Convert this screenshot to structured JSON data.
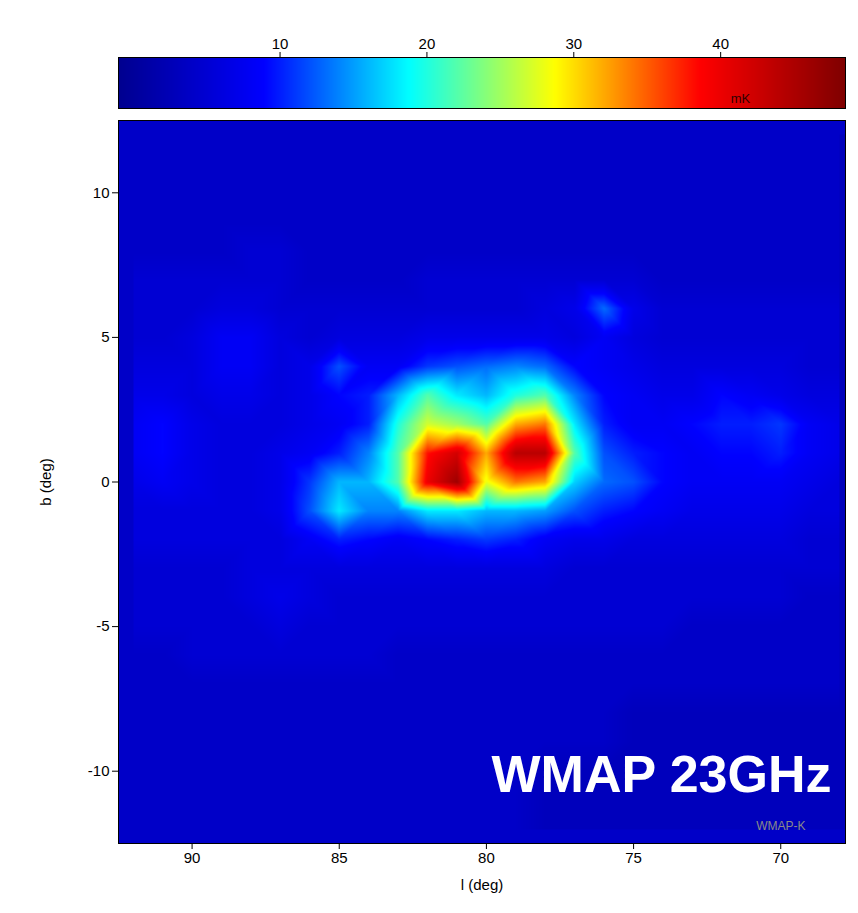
{
  "chart_data": {
    "type": "heatmap",
    "x_label": "l (deg)",
    "y_label": "b (deg)",
    "annotations": [
      "WMAP 23GHz",
      "WMAP-K"
    ],
    "xlim": [
      92.5,
      67.8
    ],
    "ylim": [
      -12.5,
      12.5
    ],
    "xticks": [
      90,
      85,
      80,
      75,
      70
    ],
    "yticks": [
      10,
      5,
      0,
      -5,
      -10
    ],
    "x": [
      92,
      91,
      90,
      89,
      88,
      87,
      86,
      85,
      84,
      83,
      82,
      81,
      80,
      79,
      78,
      77,
      76,
      75,
      74,
      73,
      72,
      71,
      70,
      69,
      68
    ],
    "y": [
      12,
      11,
      10,
      9,
      8,
      7,
      6,
      5,
      4,
      3,
      2,
      1,
      0,
      -1,
      -2,
      -3,
      -4,
      -5,
      -6,
      -7,
      -8,
      -9,
      -10,
      -11,
      -12
    ],
    "values": [
      [
        4,
        4,
        4,
        4,
        4,
        4,
        4,
        4,
        4,
        4,
        4,
        4,
        4,
        4,
        4,
        4,
        4,
        4,
        4,
        4,
        4,
        4,
        4,
        4,
        4
      ],
      [
        4,
        4,
        4,
        4,
        4,
        4,
        4,
        4,
        4,
        4,
        4,
        4,
        4,
        4,
        4,
        4,
        4,
        4,
        4,
        4,
        4,
        4,
        4,
        4,
        4
      ],
      [
        4,
        4,
        4,
        4,
        4,
        4,
        4,
        4,
        4,
        4,
        4,
        4,
        4,
        4,
        4,
        4,
        4,
        4,
        4,
        4,
        4,
        4,
        4,
        4,
        4
      ],
      [
        4,
        4,
        4,
        4,
        4,
        4,
        4,
        4,
        4,
        4,
        4,
        4,
        4,
        4,
        4,
        4,
        4,
        4,
        4,
        4,
        4,
        4,
        4,
        4,
        4
      ],
      [
        4,
        4,
        4,
        4,
        5,
        5,
        4,
        4,
        4,
        4,
        4,
        4,
        4,
        4,
        4,
        4,
        4,
        4,
        4,
        4,
        4,
        4,
        4,
        4,
        4
      ],
      [
        5,
        5,
        5,
        5,
        5,
        5,
        4,
        4,
        4,
        4,
        5,
        5,
        5,
        5,
        5,
        5,
        5,
        5,
        4,
        4,
        4,
        4,
        4,
        4,
        4
      ],
      [
        5,
        5,
        5,
        6,
        6,
        5,
        5,
        5,
        5,
        5,
        5,
        5,
        5,
        5,
        6,
        7,
        13,
        7,
        5,
        5,
        5,
        5,
        5,
        5,
        5
      ],
      [
        5,
        5,
        6,
        8,
        8,
        6,
        5,
        6,
        6,
        6,
        7,
        7,
        7,
        7,
        7,
        6,
        8,
        6,
        5,
        5,
        5,
        5,
        5,
        5,
        5
      ],
      [
        6,
        6,
        6,
        8,
        8,
        6,
        7,
        12,
        8,
        8,
        11,
        12,
        13,
        14,
        13,
        9,
        8,
        7,
        6,
        6,
        6,
        6,
        6,
        5,
        5
      ],
      [
        7,
        7,
        6,
        7,
        7,
        6,
        7,
        9,
        10,
        16,
        22,
        18,
        16,
        20,
        22,
        14,
        9,
        8,
        7,
        7,
        9,
        8,
        7,
        6,
        6
      ],
      [
        8,
        9,
        7,
        6,
        6,
        6,
        7,
        8,
        10,
        20,
        27,
        25,
        22,
        32,
        34,
        18,
        10,
        8,
        8,
        9,
        10,
        10,
        11,
        8,
        7
      ],
      [
        8,
        9,
        7,
        6,
        6,
        7,
        8,
        10,
        14,
        22,
        38,
        42,
        32,
        44,
        44,
        22,
        12,
        10,
        9,
        8,
        9,
        9,
        10,
        8,
        7
      ],
      [
        7,
        8,
        7,
        6,
        6,
        7,
        11,
        16,
        16,
        22,
        40,
        46,
        28,
        34,
        32,
        17,
        13,
        12,
        9,
        8,
        8,
        8,
        8,
        7,
        6
      ],
      [
        6,
        6,
        6,
        6,
        6,
        7,
        12,
        18,
        14,
        14,
        18,
        18,
        16,
        16,
        15,
        12,
        10,
        9,
        8,
        7,
        7,
        7,
        7,
        6,
        6
      ],
      [
        6,
        6,
        6,
        6,
        6,
        6,
        8,
        10,
        9,
        8,
        9,
        10,
        11,
        10,
        8,
        7,
        7,
        6,
        6,
        6,
        6,
        6,
        6,
        5,
        5
      ],
      [
        5,
        5,
        5,
        5,
        6,
        6,
        6,
        6,
        6,
        6,
        6,
        6,
        6,
        6,
        6,
        5,
        5,
        5,
        5,
        5,
        5,
        5,
        5,
        5,
        5
      ],
      [
        5,
        5,
        5,
        5,
        6,
        7,
        6,
        5,
        5,
        5,
        5,
        5,
        5,
        5,
        5,
        5,
        5,
        5,
        5,
        5,
        5,
        5,
        5,
        4,
        4
      ],
      [
        5,
        5,
        5,
        5,
        5,
        6,
        5,
        5,
        5,
        5,
        5,
        5,
        5,
        5,
        5,
        5,
        5,
        5,
        5,
        4,
        4,
        4,
        4,
        4,
        4
      ],
      [
        4,
        4,
        5,
        5,
        5,
        5,
        5,
        5,
        5,
        4,
        4,
        4,
        4,
        4,
        4,
        4,
        4,
        4,
        4,
        4,
        4,
        4,
        4,
        4,
        4
      ],
      [
        4,
        4,
        4,
        4,
        4,
        4,
        4,
        4,
        4,
        4,
        4,
        4,
        4,
        4,
        4,
        4,
        4,
        4,
        4,
        4,
        4,
        4,
        4,
        4,
        4
      ],
      [
        4,
        4,
        4,
        4,
        4,
        4,
        4,
        4,
        4,
        4,
        4,
        4,
        4,
        4,
        4,
        4,
        4,
        3,
        3,
        3,
        3,
        3,
        3,
        3,
        3
      ],
      [
        4,
        4,
        4,
        4,
        4,
        4,
        4,
        4,
        4,
        4,
        4,
        4,
        4,
        4,
        4,
        4,
        4,
        3,
        3,
        3,
        3,
        3,
        3,
        3,
        3
      ],
      [
        4,
        4,
        4,
        4,
        4,
        4,
        4,
        4,
        4,
        4,
        4,
        4,
        4,
        4,
        3,
        3,
        3,
        3,
        3,
        3,
        3,
        3,
        3,
        3,
        3
      ],
      [
        4,
        4,
        4,
        4,
        4,
        4,
        4,
        4,
        4,
        4,
        4,
        4,
        4,
        4,
        3,
        3,
        3,
        3,
        3,
        3,
        3,
        3,
        3,
        3,
        3
      ],
      [
        4,
        4,
        4,
        4,
        4,
        4,
        4,
        4,
        4,
        4,
        4,
        4,
        4,
        4,
        3,
        3,
        3,
        3,
        3,
        3,
        3,
        3,
        3,
        3,
        3
      ]
    ],
    "colorbar": {
      "label": "mK",
      "range": [
        -1,
        48.5
      ],
      "ticks": [
        10,
        20,
        30,
        40
      ]
    }
  }
}
